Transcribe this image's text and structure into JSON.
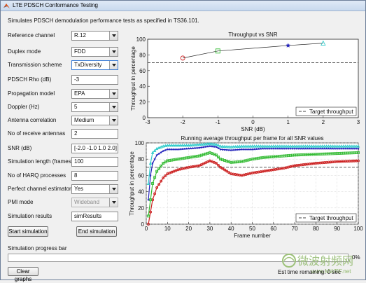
{
  "window": {
    "title": "LTE PDSCH Conformance Testing",
    "icon": "matlab-icon"
  },
  "description": "Simulates PDSCH demodulation performance tests as specified in TS36.101.",
  "params": [
    {
      "label": "Reference channel",
      "value": "R.12",
      "type": "dropdown"
    },
    {
      "label": "Duplex mode",
      "value": "FDD",
      "type": "dropdown"
    },
    {
      "label": "Transmission scheme",
      "value": "TxDiversity",
      "type": "dropdown"
    },
    {
      "label": "PDSCH Rho (dB)",
      "value": "-3",
      "type": "text"
    },
    {
      "label": "Propagation model",
      "value": "EPA",
      "type": "dropdown"
    },
    {
      "label": "Doppler (Hz)",
      "value": "5",
      "type": "dropdown"
    },
    {
      "label": "Antenna correlation",
      "value": "Medium",
      "type": "dropdown"
    },
    {
      "label": "No of receive antennas",
      "value": "2",
      "type": "text"
    },
    {
      "label": "SNR (dB)",
      "value": "[-2.0 -1.0 1.0 2.0]",
      "type": "text"
    },
    {
      "label": "Simulation length (frames)",
      "value": "100",
      "type": "text"
    },
    {
      "label": "No of HARQ processes",
      "value": "8",
      "type": "text"
    },
    {
      "label": "Perfect channel estimator",
      "value": "Yes",
      "type": "dropdown"
    },
    {
      "label": "PMI mode",
      "value": "Wideband",
      "type": "dropdown",
      "disabled": true
    },
    {
      "label": "Simulation results",
      "value": "simResults",
      "type": "text"
    }
  ],
  "buttons": {
    "start": "Start simulation",
    "end": "End simulation",
    "clear": "Clear graphs"
  },
  "progress": {
    "label": "Simulation progress bar",
    "percent_text": "0%",
    "value": 0.0
  },
  "est_time": "Est time remaining:  0 sec",
  "watermark": {
    "main": "微波射频网",
    "url": "www.MWRF.net"
  },
  "chart_data": [
    {
      "type": "line",
      "title": "Throughput vs SNR",
      "xlabel": "SNR (dB)",
      "ylabel": "Throughput in percentage",
      "xlim": [
        -3,
        3
      ],
      "ylim": [
        0,
        100
      ],
      "xticks": [
        -3,
        -2,
        -1,
        0,
        1,
        2,
        3
      ],
      "yticks": [
        0,
        20,
        40,
        60,
        80,
        100
      ],
      "x": [
        -2,
        -1,
        1,
        2
      ],
      "series": [
        {
          "values": [
            76,
            85,
            92,
            95
          ],
          "color": "#222222"
        }
      ],
      "markers": [
        {
          "x": -2,
          "y": 76,
          "shape": "circle",
          "color": "#cc2222"
        },
        {
          "x": -1,
          "y": 85,
          "shape": "square",
          "color": "#33bb33"
        },
        {
          "x": 1,
          "y": 92,
          "shape": "star",
          "color": "#2222bb"
        },
        {
          "x": 2,
          "y": 95,
          "shape": "triangle",
          "color": "#33cccc"
        }
      ],
      "reference": {
        "name": "Target throughput",
        "value": 70,
        "color": "#444444"
      },
      "legend": "bottom-right",
      "grid": false
    },
    {
      "type": "line",
      "title": "Running average throughput per frame for all SNR values",
      "xlabel": "Frame number",
      "ylabel": "Throughput in percentage",
      "xlim": [
        0,
        100
      ],
      "ylim": [
        0,
        100
      ],
      "xticks": [
        0,
        10,
        20,
        30,
        40,
        50,
        60,
        70,
        80,
        90,
        100
      ],
      "yticks": [
        0,
        20,
        40,
        60,
        80,
        100
      ],
      "x": [
        1,
        2,
        3,
        5,
        8,
        10,
        15,
        20,
        25,
        30,
        33,
        35,
        40,
        45,
        50,
        55,
        60,
        65,
        70,
        80,
        90,
        100
      ],
      "series": [
        {
          "values": [
            0,
            15,
            30,
            45,
            57,
            62,
            67,
            70,
            72,
            78,
            75,
            70,
            62,
            60,
            63,
            65,
            67,
            69,
            72,
            75,
            77,
            78
          ],
          "color": "#cc2222",
          "marker": "circle"
        },
        {
          "values": [
            10,
            30,
            50,
            65,
            75,
            78,
            80,
            82,
            84,
            88,
            85,
            80,
            76,
            77,
            80,
            82,
            83,
            84,
            85,
            86,
            87,
            88
          ],
          "color": "#33bb33",
          "marker": "square"
        },
        {
          "values": [
            30,
            60,
            75,
            85,
            90,
            92,
            92,
            93,
            94,
            96,
            95,
            92,
            91,
            92,
            92,
            93,
            93,
            93,
            93,
            93,
            93,
            93
          ],
          "color": "#2222bb",
          "marker": "star"
        },
        {
          "values": [
            50,
            75,
            88,
            93,
            96,
            97,
            97,
            97,
            98,
            99,
            98,
            96,
            95,
            96,
            96,
            96,
            96,
            96,
            96,
            96,
            96,
            96
          ],
          "color": "#33cccc",
          "marker": "triangle"
        }
      ],
      "reference": {
        "name": "Target throughput",
        "value": 70,
        "color": "#444444"
      },
      "legend": "bottom-right",
      "grid": true
    }
  ]
}
